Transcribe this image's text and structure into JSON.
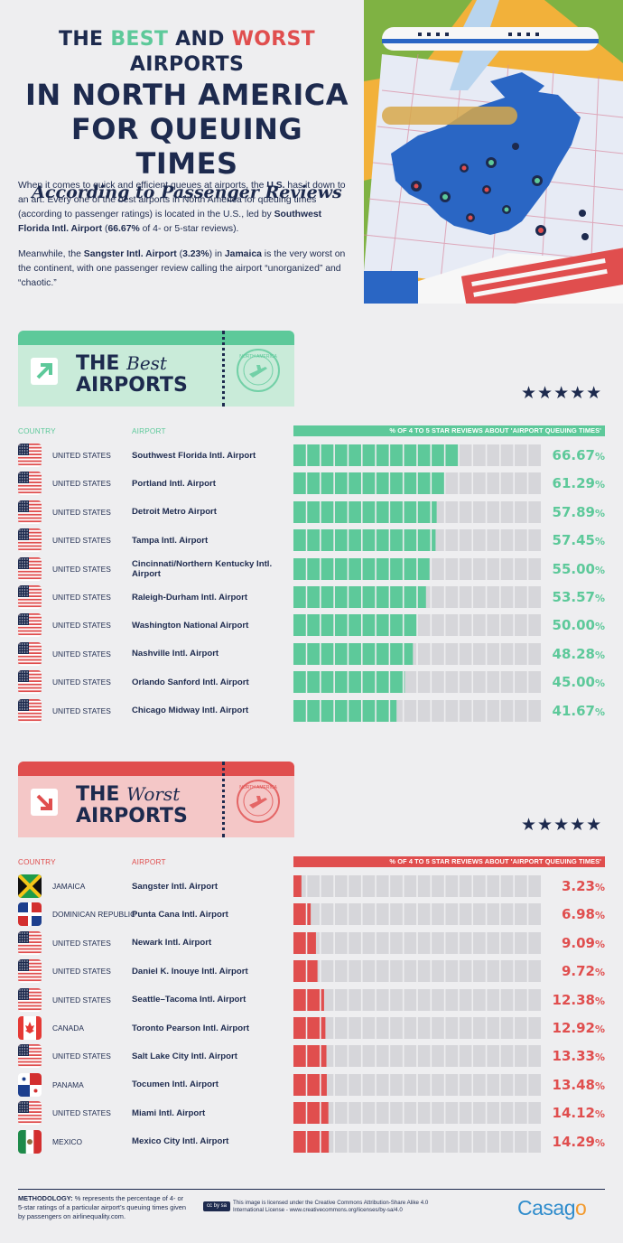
{
  "title": {
    "line1_a": "THE ",
    "line1_best": "BEST",
    "line1_b": " AND ",
    "line1_worst": "WORST",
    "line1_c": " AIRPORTS",
    "line2": "IN NORTH AMERICA",
    "line3": "FOR QUEUING TIMES",
    "subtitle": "According to Passenger Reviews"
  },
  "intro": {
    "p1_a": "When it comes to quick and efficient queues at airports, the ",
    "p1_us": "U.S.",
    "p1_b": " has it down to an art. Every one of the best airports in North America for queuing times (according to passenger ratings) is located in the U.S., led by ",
    "p1_airport": "Southwest Florida Intl. Airport",
    "p1_c": " (",
    "p1_pct": "66.67%",
    "p1_d": " of 4- or 5-star reviews).",
    "p2_a": "Meanwhile, the ",
    "p2_airport": "Sangster Intl. Airport",
    "p2_b": " (",
    "p2_pct": "3.23%",
    "p2_c": ") in ",
    "p2_country": "Jamaica",
    "p2_d": " is the very worst on the continent, with one passenger review calling the airport “unorganized” and “chaotic.”"
  },
  "stamp_text": "NORTH AMERICA",
  "stars": "★★★★★",
  "columns": {
    "country": "COUNTRY",
    "airport": "AIRPORT",
    "bar": "% OF 4 TO 5 STAR REVIEWS ABOUT 'AIRPORT QUEUING TIMES'"
  },
  "colors": {
    "navy": "#1d2a4e",
    "green": "#5dc99a",
    "green_light": "#c9ebd9",
    "red": "#e04e4e",
    "red_light": "#f4c7c7",
    "empty": "#d6d6da"
  },
  "chart_data": [
    {
      "type": "bar",
      "orientation": "horizontal",
      "title_a": "THE",
      "title_b": "Best",
      "title_c": "AIRPORTS",
      "xlim": [
        0,
        100
      ],
      "unit": "%",
      "rows": [
        {
          "country": "UNITED STATES",
          "flag": "us",
          "airport": "Southwest Florida Intl. Airport",
          "value": 66.67,
          "label": "66.67"
        },
        {
          "country": "UNITED STATES",
          "flag": "us",
          "airport": "Portland Intl. Airport",
          "value": 61.29,
          "label": "61.29"
        },
        {
          "country": "UNITED STATES",
          "flag": "us",
          "airport": "Detroit Metro Airport",
          "value": 57.89,
          "label": "57.89"
        },
        {
          "country": "UNITED STATES",
          "flag": "us",
          "airport": "Tampa Intl. Airport",
          "value": 57.45,
          "label": "57.45"
        },
        {
          "country": "UNITED STATES",
          "flag": "us",
          "airport": "Cincinnati/Northern Kentucky Intl. Airport",
          "value": 55.0,
          "label": "55.00"
        },
        {
          "country": "UNITED STATES",
          "flag": "us",
          "airport": "Raleigh-Durham Intl. Airport",
          "value": 53.57,
          "label": "53.57"
        },
        {
          "country": "UNITED STATES",
          "flag": "us",
          "airport": "Washington National Airport",
          "value": 50.0,
          "label": "50.00"
        },
        {
          "country": "UNITED STATES",
          "flag": "us",
          "airport": "Nashville Intl. Airport",
          "value": 48.28,
          "label": "48.28"
        },
        {
          "country": "UNITED STATES",
          "flag": "us",
          "airport": "Orlando Sanford Intl. Airport",
          "value": 45.0,
          "label": "45.00"
        },
        {
          "country": "UNITED STATES",
          "flag": "us",
          "airport": "Chicago Midway Intl. Airport",
          "value": 41.67,
          "label": "41.67"
        }
      ]
    },
    {
      "type": "bar",
      "orientation": "horizontal",
      "title_a": "THE",
      "title_b": "Worst",
      "title_c": "AIRPORTS",
      "xlim": [
        0,
        100
      ],
      "unit": "%",
      "rows": [
        {
          "country": "JAMAICA",
          "flag": "jm",
          "airport": "Sangster Intl. Airport",
          "value": 3.23,
          "label": "3.23"
        },
        {
          "country": "DOMINICAN REPUBLIC",
          "flag": "do",
          "airport": "Punta Cana Intl. Airport",
          "value": 6.98,
          "label": "6.98"
        },
        {
          "country": "UNITED STATES",
          "flag": "us",
          "airport": "Newark Intl. Airport",
          "value": 9.09,
          "label": "9.09"
        },
        {
          "country": "UNITED STATES",
          "flag": "us",
          "airport": "Daniel K. Inouye Intl. Airport",
          "value": 9.72,
          "label": "9.72"
        },
        {
          "country": "UNITED STATES",
          "flag": "us",
          "airport": "Seattle–Tacoma Intl. Airport",
          "value": 12.38,
          "label": "12.38"
        },
        {
          "country": "CANADA",
          "flag": "ca",
          "airport": "Toronto Pearson Intl. Airport",
          "value": 12.92,
          "label": "12.92"
        },
        {
          "country": "UNITED STATES",
          "flag": "us",
          "airport": "Salt Lake City Intl. Airport",
          "value": 13.33,
          "label": "13.33"
        },
        {
          "country": "PANAMA",
          "flag": "pa",
          "airport": "Tocumen Intl. Airport",
          "value": 13.48,
          "label": "13.48"
        },
        {
          "country": "UNITED STATES",
          "flag": "us",
          "airport": "Miami Intl. Airport",
          "value": 14.12,
          "label": "14.12"
        },
        {
          "country": "MEXICO",
          "flag": "mx",
          "airport": "Mexico City Intl. Airport",
          "value": 14.29,
          "label": "14.29"
        }
      ]
    }
  ],
  "footer": {
    "methodology_label": "METHODOLOGY:",
    "methodology_text": " % represents the percentage of 4- or 5-star ratings of a particular airport’s queuing times given by passengers on airlinequality.com.",
    "cc_badge": "cc by sa",
    "license": "This image is licensed under the Creative Commons Attribution-Share Alike 4.0 International License - www.creativecommons.org/licenses/by-sa/4.0",
    "logo_a": "Casag",
    "logo_b": "o"
  }
}
